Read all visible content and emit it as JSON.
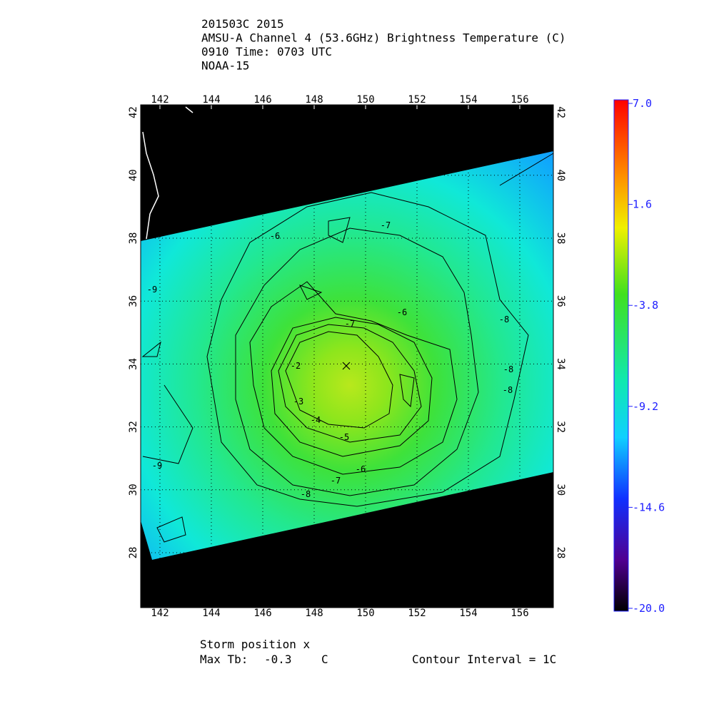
{
  "header": {
    "lines": [
      "201503C 2015",
      "AMSU-A Channel 4 (53.6GHz) Brightness Temperature (C)",
      "0910 Time: 0703 UTC",
      "NOAA-15"
    ]
  },
  "map": {
    "lon_ticks": [
      142,
      144,
      146,
      148,
      150,
      152,
      154,
      156
    ],
    "lat_ticks": [
      28,
      30,
      32,
      34,
      36,
      38,
      40,
      42
    ],
    "grid": true,
    "contour_labels": [
      -6,
      -9,
      -6,
      -7,
      -8,
      -8,
      -8,
      -9,
      -8,
      -7,
      -6,
      -5,
      -4,
      -3,
      -2,
      -7
    ]
  },
  "colorbar": {
    "range": [
      -20,
      7
    ],
    "ticks": [
      {
        "value": 7,
        "label": "7.0"
      },
      1.6,
      -3.8,
      -9.2,
      -14.6,
      {
        "value": -20,
        "label": "-20.0"
      }
    ]
  },
  "footer": {
    "storm_position": "Storm position x",
    "max_tb_label": "Max Tb:",
    "max_tb_value": "-0.3",
    "max_tb_unit": "C",
    "contour_interval": "Contour Interval = 1C"
  }
}
